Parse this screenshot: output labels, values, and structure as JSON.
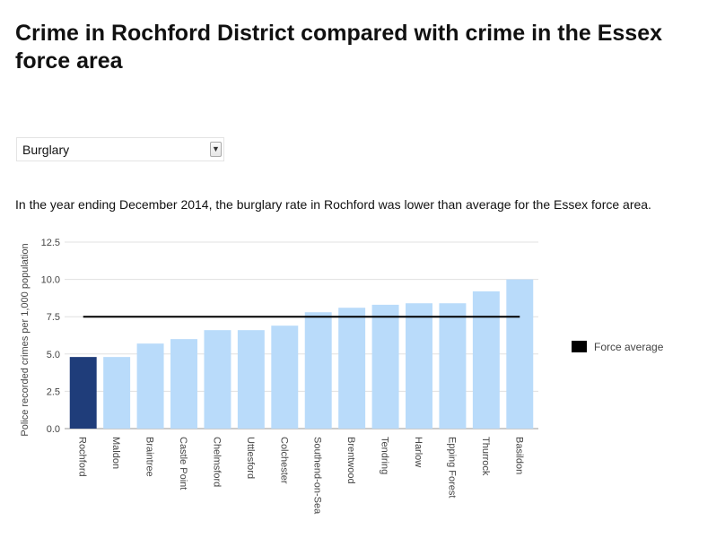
{
  "page": {
    "title": "Crime in Rochford District compared with crime in the Essex force area",
    "crime_type_select": {
      "value": "Burglary"
    },
    "summary": "In the year ending December 2014, the burglary rate in Rochford was lower than average for the Essex force area."
  },
  "chart_data": {
    "type": "bar",
    "categories": [
      "Rochford",
      "Maldon",
      "Braintree",
      "Castle Point",
      "Chelmsford",
      "Uttlesford",
      "Colchester",
      "Southend-on-Sea",
      "Brentwood",
      "Tendring",
      "Harlow",
      "Epping Forest",
      "Thurrock",
      "Basildon"
    ],
    "values": [
      4.8,
      4.8,
      5.7,
      6.0,
      6.6,
      6.6,
      6.9,
      7.8,
      8.1,
      8.3,
      8.4,
      8.4,
      9.2,
      10.0
    ],
    "highlighted_category": "Rochford",
    "ylabel": "Police recorded crimes per 1,000 population",
    "xlabel": "",
    "ylim": [
      0,
      12.5
    ],
    "y_ticks": [
      "0.0",
      "2.5",
      "5.0",
      "7.5",
      "10.0",
      "12.5"
    ],
    "reference_line": {
      "name": "Force average",
      "value": 7.5
    },
    "grid": true,
    "legend_position": "right",
    "colors": {
      "bar": "#b9dbfa",
      "highlight": "#1f3d7a",
      "average_line": "#000000",
      "grid": "#e0e0e0"
    }
  }
}
